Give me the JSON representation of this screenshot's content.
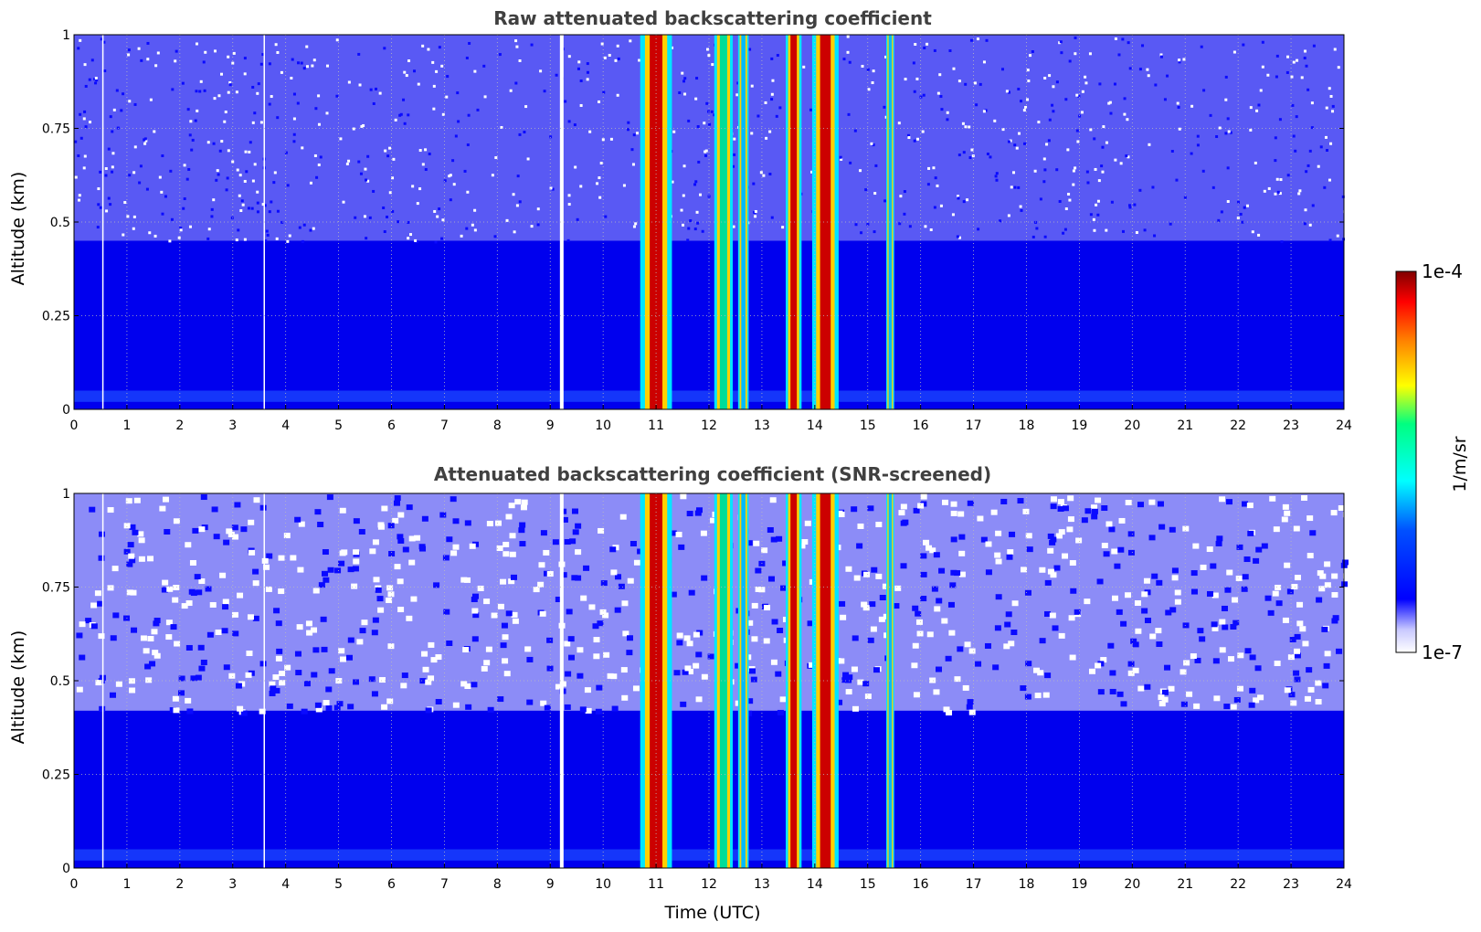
{
  "figure": {
    "colormap": [
      "#ffffff",
      "#0000ff",
      "#00ffff",
      "#ffff00",
      "#ff0000",
      "#800000"
    ],
    "background_color": "#0000ee",
    "colorbar": {
      "label": "1/m/sr",
      "max_label": "1e-4",
      "min_label": "1e-7",
      "range": [
        1e-07,
        0.0001
      ],
      "scale": "log"
    }
  },
  "chart_data": [
    {
      "type": "heatmap",
      "title": "Raw attenuated backscattering coefficient",
      "xlabel": "",
      "ylabel": "Altitude (km)",
      "xlim": [
        0,
        24
      ],
      "ylim": [
        0,
        1
      ],
      "xticks": [
        "0",
        "1",
        "2",
        "3",
        "4",
        "5",
        "6",
        "7",
        "8",
        "9",
        "10",
        "11",
        "12",
        "13",
        "14",
        "15",
        "16",
        "17",
        "18",
        "19",
        "20",
        "21",
        "22",
        "23",
        "24"
      ],
      "yticks": [
        "0",
        "0.25",
        "0.5",
        "0.75",
        "1"
      ],
      "grid": true,
      "screened": false,
      "gaps_utc": [
        0.55,
        3.6,
        9.2
      ],
      "cloud_bands_utc": [
        {
          "start": 10.7,
          "end": 11.3,
          "intensity": "high"
        },
        {
          "start": 12.1,
          "end": 12.45,
          "intensity": "medium"
        },
        {
          "start": 12.55,
          "end": 12.75,
          "intensity": "low"
        },
        {
          "start": 13.45,
          "end": 13.75,
          "intensity": "high"
        },
        {
          "start": 13.95,
          "end": 14.45,
          "intensity": "high"
        },
        {
          "start": 15.35,
          "end": 15.5,
          "intensity": "low"
        }
      ]
    },
    {
      "type": "heatmap",
      "title": "Attenuated backscattering coefficient (SNR-screened)",
      "xlabel": "Time (UTC)",
      "ylabel": "Altitude (km)",
      "xlim": [
        0,
        24
      ],
      "ylim": [
        0,
        1
      ],
      "xticks": [
        "0",
        "1",
        "2",
        "3",
        "4",
        "5",
        "6",
        "7",
        "8",
        "9",
        "10",
        "11",
        "12",
        "13",
        "14",
        "15",
        "16",
        "17",
        "18",
        "19",
        "20",
        "21",
        "22",
        "23",
        "24"
      ],
      "yticks": [
        "0",
        "0.25",
        "0.5",
        "0.75",
        "1"
      ],
      "grid": true,
      "screened": true,
      "gaps_utc": [
        0.55,
        3.6,
        9.2
      ],
      "cloud_bands_utc": [
        {
          "start": 10.7,
          "end": 11.3,
          "intensity": "high"
        },
        {
          "start": 12.1,
          "end": 12.45,
          "intensity": "medium"
        },
        {
          "start": 12.55,
          "end": 12.75,
          "intensity": "low"
        },
        {
          "start": 13.45,
          "end": 13.75,
          "intensity": "high"
        },
        {
          "start": 13.95,
          "end": 14.45,
          "intensity": "high"
        },
        {
          "start": 15.35,
          "end": 15.5,
          "intensity": "low"
        }
      ]
    }
  ]
}
